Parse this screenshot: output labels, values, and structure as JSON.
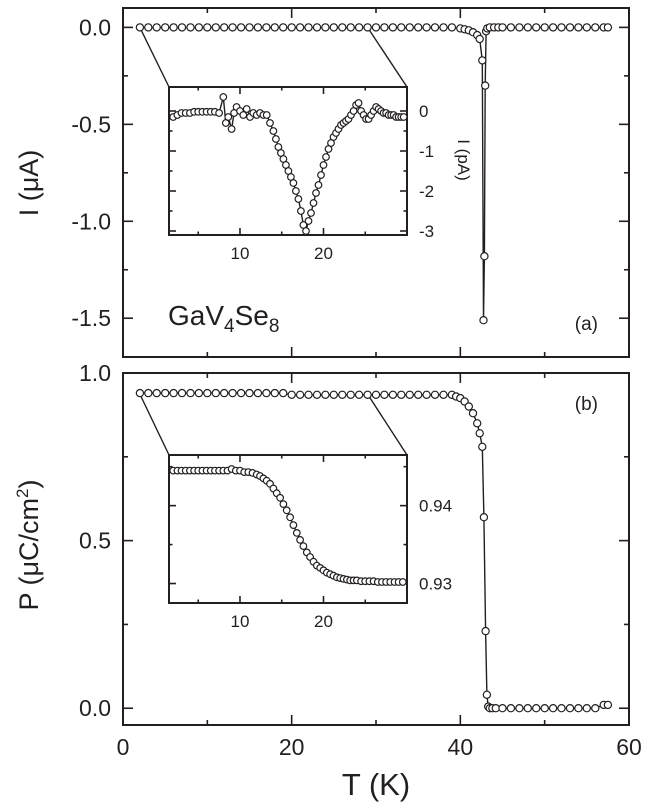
{
  "chart_data": [
    {
      "id": "a",
      "type": "line",
      "panel_label": "(a)",
      "sample_label": {
        "main": "GaV",
        "sub1": "4",
        "mid": "Se",
        "sub2": "8"
      },
      "xlabel": "",
      "ylabel": "I (μA)",
      "xlim": [
        0,
        60
      ],
      "ylim": [
        -1.7,
        0.1
      ],
      "xticks": [
        0,
        20,
        40,
        60
      ],
      "yticks": [
        0.0,
        -0.5,
        -1.0,
        -1.5
      ],
      "ytick_labels": [
        "0.0",
        "-0.5",
        "-1.0",
        "-1.5"
      ],
      "series": [
        {
          "x": [
            2,
            3,
            4,
            5,
            6,
            7,
            8,
            9,
            10,
            11,
            12,
            13,
            14,
            15,
            16,
            17,
            18,
            19,
            20,
            21,
            22,
            23,
            24,
            25,
            26,
            27,
            28,
            29,
            30,
            31,
            32,
            33,
            34,
            35,
            36,
            37,
            38,
            39,
            40,
            40.5,
            41,
            41.5,
            42,
            42.3,
            42.6,
            42.75,
            42.85,
            42.95,
            43.05,
            43.2,
            43.5,
            44,
            44.5,
            45,
            46,
            47,
            48,
            49,
            50,
            51,
            52,
            53,
            54,
            55,
            56,
            57,
            57.5
          ],
          "y": [
            0,
            0,
            0,
            0,
            0,
            0,
            0,
            0,
            0,
            0,
            0,
            0,
            0,
            0,
            0,
            0,
            0,
            0,
            0,
            0,
            0,
            0,
            0,
            0,
            0,
            0,
            0,
            0,
            0,
            0,
            0,
            0,
            0,
            0,
            0,
            0,
            0,
            0,
            -0.005,
            -0.01,
            -0.015,
            -0.025,
            -0.04,
            -0.06,
            -0.17,
            -1.51,
            -1.18,
            -0.3,
            -0.02,
            -0.005,
            0,
            0,
            0,
            0,
            0,
            0,
            0,
            0,
            0,
            0,
            0,
            0,
            0,
            0,
            0,
            0,
            0
          ]
        }
      ],
      "inset": {
        "xlabel": "",
        "ylabel": "I (pA)",
        "xlim": [
          1.5,
          30
        ],
        "ylim": [
          -3.1,
          0.6
        ],
        "xticks": [
          10,
          20
        ],
        "yticks": [
          0,
          -1,
          -2,
          -3
        ],
        "ytick_labels": [
          "0",
          "-1",
          "-2",
          "-3"
        ],
        "zoom_from": [
          2,
          29
        ],
        "x": [
          2,
          2.5,
          3,
          3.5,
          4,
          4.5,
          5,
          5.5,
          6,
          6.5,
          7,
          7.5,
          8,
          8.3,
          8.6,
          9,
          9.3,
          9.6,
          10,
          10.4,
          10.8,
          11.2,
          11.6,
          12,
          12.4,
          12.8,
          13.2,
          13.6,
          14,
          14.3,
          14.6,
          14.9,
          15.2,
          15.5,
          15.8,
          16.1,
          16.4,
          16.7,
          17,
          17.3,
          17.6,
          17.9,
          18.2,
          18.5,
          18.8,
          19.1,
          19.4,
          19.7,
          20,
          20.3,
          20.6,
          20.9,
          21.2,
          21.5,
          21.8,
          22.1,
          22.4,
          22.7,
          23,
          23.3,
          23.6,
          23.9,
          24.2,
          24.5,
          24.8,
          25.1,
          25.4,
          25.7,
          26,
          26.3,
          26.6,
          26.9,
          27.2,
          27.5,
          27.8,
          28.1,
          28.4,
          28.7,
          29,
          29.3,
          29.6
        ],
        "y": [
          -0.15,
          -0.1,
          -0.05,
          -0.05,
          -0.05,
          -0.02,
          -0.02,
          -0.02,
          -0.02,
          -0.02,
          -0.02,
          -0.05,
          0.35,
          -0.3,
          -0.15,
          -0.45,
          -0.05,
          0.1,
          0.0,
          -0.1,
          0.05,
          -0.15,
          -0.05,
          -0.1,
          -0.05,
          -0.1,
          -0.1,
          -0.3,
          -0.5,
          -0.7,
          -0.9,
          -1.05,
          -1.2,
          -1.35,
          -1.5,
          -1.65,
          -1.8,
          -2.0,
          -2.2,
          -2.5,
          -2.85,
          -3.0,
          -2.75,
          -2.55,
          -2.3,
          -2.05,
          -1.85,
          -1.6,
          -1.35,
          -1.15,
          -0.95,
          -0.8,
          -0.65,
          -0.55,
          -0.45,
          -0.35,
          -0.3,
          -0.25,
          -0.2,
          -0.1,
          0.0,
          0.15,
          0.2,
          0.0,
          -0.1,
          -0.2,
          -0.2,
          -0.1,
          0.0,
          0.1,
          0.05,
          0.0,
          -0.05,
          -0.05,
          -0.1,
          -0.1,
          -0.1,
          -0.15,
          -0.15,
          -0.15,
          -0.15
        ]
      }
    },
    {
      "id": "b",
      "type": "line",
      "panel_label": "(b)",
      "xlabel": "T (K)",
      "ylabel": "P (μC/cm²)",
      "ylabel_parts": {
        "main": "P (μC/cm",
        "sup": "2",
        "end": ")"
      },
      "xlim": [
        0,
        60
      ],
      "ylim": [
        -0.05,
        1.0
      ],
      "xticks": [
        0,
        20,
        40,
        60
      ],
      "xtick_labels": [
        "0",
        "20",
        "40",
        "60"
      ],
      "yticks": [
        0.0,
        0.5,
        1.0
      ],
      "ytick_labels": [
        "0.0",
        "0.5",
        "1.0"
      ],
      "series": [
        {
          "x": [
            2,
            3,
            4,
            5,
            6,
            7,
            8,
            9,
            10,
            11,
            12,
            13,
            14,
            15,
            16,
            17,
            18,
            19,
            20,
            21,
            22,
            23,
            24,
            25,
            26,
            27,
            28,
            29,
            30,
            31,
            32,
            33,
            34,
            35,
            36,
            37,
            38,
            39,
            39.5,
            40,
            40.5,
            41,
            41.5,
            42,
            42.3,
            42.6,
            42.8,
            43,
            43.15,
            43.3,
            43.5,
            43.8,
            44.2,
            45,
            46,
            47,
            48,
            49,
            50,
            51,
            52,
            53,
            54,
            55,
            56,
            57,
            57.5
          ],
          "y": [
            0.94,
            0.94,
            0.94,
            0.94,
            0.94,
            0.94,
            0.94,
            0.94,
            0.94,
            0.94,
            0.94,
            0.94,
            0.94,
            0.94,
            0.94,
            0.94,
            0.94,
            0.94,
            0.935,
            0.935,
            0.935,
            0.935,
            0.935,
            0.935,
            0.935,
            0.935,
            0.935,
            0.935,
            0.935,
            0.935,
            0.935,
            0.935,
            0.935,
            0.935,
            0.935,
            0.935,
            0.935,
            0.935,
            0.93,
            0.925,
            0.915,
            0.9,
            0.88,
            0.85,
            0.82,
            0.78,
            0.57,
            0.23,
            0.04,
            0.005,
            0.0,
            0.0,
            0.0,
            0.0,
            0.0,
            0.0,
            0.0,
            0.0,
            0.0,
            0.0,
            0.0,
            0.0,
            0.0,
            0.0,
            0.0,
            0.01,
            0.01
          ]
        }
      ],
      "inset": {
        "xlabel": "",
        "ylabel": "",
        "xlim": [
          1.5,
          30
        ],
        "ylim": [
          0.9275,
          0.9465
        ],
        "xticks": [
          10,
          20
        ],
        "yticks": [
          0.93,
          0.94
        ],
        "ytick_labels": [
          "0.93",
          "0.94"
        ],
        "zoom_from": [
          2,
          29
        ],
        "x": [
          2,
          2.5,
          3,
          3.5,
          4,
          4.5,
          5,
          5.5,
          6,
          6.5,
          7,
          7.5,
          8,
          8.5,
          9,
          9.5,
          10,
          10.5,
          11,
          11.5,
          12,
          12.4,
          12.8,
          13.2,
          13.6,
          14,
          14.4,
          14.8,
          15.2,
          15.6,
          16,
          16.4,
          16.8,
          17.2,
          17.6,
          18,
          18.4,
          18.8,
          19.2,
          19.6,
          20,
          20.4,
          20.8,
          21.2,
          21.6,
          22,
          22.4,
          22.8,
          23.2,
          23.6,
          24,
          24.5,
          25,
          25.5,
          26,
          26.5,
          27,
          27.5,
          28,
          28.5,
          29,
          29.5
        ],
        "y": [
          0.9445,
          0.9445,
          0.9445,
          0.9445,
          0.9445,
          0.9445,
          0.9445,
          0.9445,
          0.9445,
          0.9445,
          0.9445,
          0.9445,
          0.9445,
          0.9445,
          0.9447,
          0.9445,
          0.9445,
          0.9443,
          0.9443,
          0.9442,
          0.944,
          0.9438,
          0.9435,
          0.9432,
          0.9428,
          0.9422,
          0.9416,
          0.941,
          0.9402,
          0.9394,
          0.9385,
          0.9375,
          0.9365,
          0.9356,
          0.9348,
          0.934,
          0.9334,
          0.9328,
          0.9323,
          0.932,
          0.9317,
          0.9314,
          0.9312,
          0.931,
          0.9308,
          0.9307,
          0.9306,
          0.9305,
          0.9304,
          0.9304,
          0.9304,
          0.9303,
          0.9303,
          0.9303,
          0.9303,
          0.9302,
          0.9302,
          0.9302,
          0.9302,
          0.9302,
          0.9302,
          0.9302
        ]
      }
    }
  ]
}
